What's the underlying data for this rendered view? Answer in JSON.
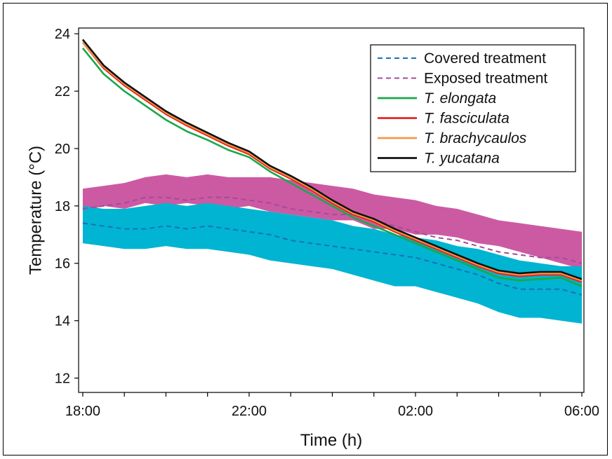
{
  "chart_data": {
    "type": "line",
    "xlabel": "Time (h)",
    "ylabel": "Temperature (°C)",
    "x_ticks": [
      "18:00",
      "22:00",
      "02:00",
      "06:00"
    ],
    "x_tick_hours": [
      0,
      4,
      8,
      12
    ],
    "xlim_hours": [
      -0.1,
      12.05
    ],
    "ylim": [
      11.5,
      24.2
    ],
    "y_ticks": [
      12,
      14,
      16,
      18,
      20,
      22,
      24
    ],
    "grid": false,
    "legend_position": "top-right",
    "x_hours": [
      0,
      0.5,
      1,
      1.5,
      2,
      2.5,
      3,
      3.5,
      4,
      4.5,
      5,
      5.5,
      6,
      6.5,
      7,
      7.5,
      8,
      8.5,
      9,
      9.5,
      10,
      10.5,
      11,
      11.5,
      12
    ],
    "bands": [
      {
        "name": "Exposed treatment",
        "color": "#cc5aa3",
        "lower": [
          17.8,
          18.0,
          17.9,
          18.1,
          18.0,
          18.1,
          18.0,
          17.9,
          18.0,
          17.8,
          17.7,
          17.6,
          17.5,
          17.5,
          17.2,
          17.2,
          17.0,
          17.0,
          16.9,
          16.7,
          16.6,
          16.4,
          16.2,
          16.0,
          15.8
        ],
        "upper": [
          18.6,
          18.7,
          18.8,
          19.0,
          19.1,
          19.0,
          19.1,
          19.0,
          19.0,
          19.0,
          18.9,
          18.8,
          18.7,
          18.6,
          18.4,
          18.3,
          18.2,
          18.0,
          17.9,
          17.7,
          17.5,
          17.4,
          17.3,
          17.2,
          17.1
        ]
      },
      {
        "name": "Covered treatment",
        "color": "#00b4d2",
        "lower": [
          16.7,
          16.6,
          16.5,
          16.5,
          16.6,
          16.5,
          16.5,
          16.4,
          16.3,
          16.1,
          16.0,
          15.9,
          15.8,
          15.6,
          15.4,
          15.2,
          15.2,
          15.0,
          14.8,
          14.6,
          14.3,
          14.1,
          14.1,
          14.0,
          13.9
        ],
        "upper": [
          18.0,
          17.9,
          17.9,
          18.0,
          18.1,
          18.0,
          18.1,
          18.0,
          17.9,
          17.8,
          17.7,
          17.6,
          17.5,
          17.3,
          17.2,
          17.0,
          16.9,
          16.8,
          16.6,
          16.5,
          16.3,
          16.1,
          16.0,
          15.9,
          15.9
        ]
      }
    ],
    "series": [
      {
        "name": "Covered treatment",
        "color": "#1a6fb5",
        "style": "dashed",
        "values": [
          17.4,
          17.3,
          17.2,
          17.2,
          17.3,
          17.2,
          17.3,
          17.2,
          17.1,
          17.0,
          16.8,
          16.7,
          16.6,
          16.5,
          16.4,
          16.3,
          16.2,
          16.0,
          15.8,
          15.6,
          15.3,
          15.1,
          15.1,
          15.1,
          14.9
        ]
      },
      {
        "name": "Exposed treatment",
        "color": "#a24c98",
        "style": "dashed",
        "values": [
          17.9,
          18.0,
          18.1,
          18.3,
          18.3,
          18.2,
          18.3,
          18.3,
          18.2,
          18.1,
          17.9,
          17.8,
          17.7,
          17.7,
          17.5,
          17.3,
          17.1,
          16.9,
          16.8,
          16.6,
          16.4,
          16.3,
          16.2,
          16.2,
          16.0
        ]
      },
      {
        "name": "T. elongata",
        "color": "#1aa84a",
        "style": "solid",
        "values": [
          23.5,
          22.6,
          22.0,
          21.5,
          21.0,
          20.6,
          20.3,
          19.95,
          19.7,
          19.2,
          18.8,
          18.4,
          18.0,
          17.6,
          17.3,
          17.0,
          16.7,
          16.4,
          16.1,
          15.8,
          15.5,
          15.4,
          15.45,
          15.5,
          15.2
        ]
      },
      {
        "name": "T. fasciculata",
        "color": "#e52520",
        "style": "solid",
        "values": [
          23.7,
          22.8,
          22.2,
          21.7,
          21.2,
          20.8,
          20.45,
          20.1,
          19.8,
          19.3,
          18.95,
          18.55,
          18.1,
          17.7,
          17.45,
          17.1,
          16.8,
          16.5,
          16.2,
          15.9,
          15.65,
          15.55,
          15.6,
          15.6,
          15.35
        ]
      },
      {
        "name": "T. brachycaulos",
        "color": "#f39a44",
        "style": "solid",
        "values": [
          23.7,
          22.85,
          22.25,
          21.75,
          21.25,
          20.85,
          20.5,
          20.15,
          19.85,
          19.35,
          19.0,
          18.6,
          18.15,
          17.75,
          17.5,
          17.15,
          16.85,
          16.55,
          16.25,
          15.95,
          15.7,
          15.6,
          15.65,
          15.65,
          15.4
        ]
      },
      {
        "name": "T. yucatana",
        "color": "#111111",
        "style": "solid",
        "values": [
          23.8,
          22.9,
          22.3,
          21.8,
          21.3,
          20.9,
          20.55,
          20.2,
          19.9,
          19.4,
          19.05,
          18.65,
          18.2,
          17.8,
          17.55,
          17.2,
          16.9,
          16.6,
          16.3,
          16.0,
          15.75,
          15.65,
          15.7,
          15.7,
          15.45
        ]
      }
    ],
    "legend": [
      {
        "label": "Covered treatment",
        "color": "#1a6fb5",
        "style": "dashed",
        "italic": false
      },
      {
        "label": "Exposed treatment",
        "color": "#a24c98",
        "style": "dashed",
        "italic": false
      },
      {
        "label": "T. elongata",
        "color": "#1aa84a",
        "style": "solid",
        "italic": true
      },
      {
        "label": "T. fasciculata",
        "color": "#e52520",
        "style": "solid",
        "italic": true
      },
      {
        "label": "T. brachycaulos",
        "color": "#f39a44",
        "style": "solid",
        "italic": true
      },
      {
        "label": "T. yucatana",
        "color": "#111111",
        "style": "solid",
        "italic": true
      }
    ]
  }
}
